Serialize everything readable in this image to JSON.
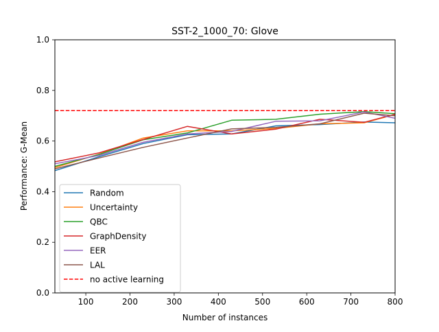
{
  "chart_data": {
    "type": "line",
    "title": "SST-2_1000_70: Glove",
    "xlabel": "Number of instances",
    "ylabel": "Performance: G-Mean",
    "xlim": [
      30,
      800
    ],
    "ylim": [
      0.0,
      1.0
    ],
    "xticks": [
      100,
      200,
      300,
      400,
      500,
      600,
      700,
      800
    ],
    "xtick_labels": [
      "100",
      "200",
      "300",
      "400",
      "500",
      "600",
      "700",
      "800"
    ],
    "yticks": [
      0.0,
      0.2,
      0.4,
      0.6,
      0.8,
      1.0
    ],
    "ytick_labels": [
      "0.0",
      "0.2",
      "0.4",
      "0.6",
      "0.8",
      "1.0"
    ],
    "grid": false,
    "legend_position": "lower-left",
    "x": [
      30,
      130,
      230,
      330,
      430,
      530,
      630,
      730,
      800
    ],
    "series": [
      {
        "name": "Random",
        "color": "#1f77b4",
        "style": "solid",
        "values": [
          0.483,
          0.538,
          0.59,
          0.625,
          0.628,
          0.66,
          0.665,
          0.675,
          0.672
        ]
      },
      {
        "name": "Uncertainty",
        "color": "#ff7f0e",
        "style": "solid",
        "values": [
          0.495,
          0.548,
          0.612,
          0.64,
          0.64,
          0.65,
          0.668,
          0.672,
          0.705
        ]
      },
      {
        "name": "QBC",
        "color": "#2ca02c",
        "style": "solid",
        "values": [
          0.5,
          0.547,
          0.605,
          0.632,
          0.682,
          0.686,
          0.706,
          0.716,
          0.708
        ]
      },
      {
        "name": "GraphDensity",
        "color": "#d62728",
        "style": "solid",
        "values": [
          0.518,
          0.553,
          0.606,
          0.658,
          0.628,
          0.647,
          0.686,
          0.674,
          0.706
        ]
      },
      {
        "name": "EER",
        "color": "#9467bd",
        "style": "solid",
        "values": [
          0.51,
          0.543,
          0.595,
          0.628,
          0.638,
          0.678,
          0.68,
          0.715,
          0.69
        ]
      },
      {
        "name": "LAL",
        "color": "#8c564b",
        "style": "solid",
        "values": [
          0.49,
          0.533,
          0.575,
          0.612,
          0.648,
          0.654,
          0.668,
          0.71,
          0.7
        ]
      },
      {
        "name": "no active learning",
        "color": "#ff0000",
        "style": "dashed",
        "values": [
          0.72,
          0.72,
          0.72,
          0.72,
          0.72,
          0.72,
          0.72,
          0.72,
          0.72
        ]
      }
    ]
  }
}
